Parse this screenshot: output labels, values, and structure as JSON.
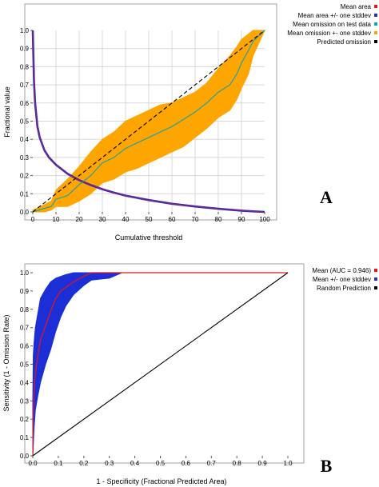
{
  "chart_data": [
    {
      "type": "line",
      "panel_label": "A",
      "xlabel": "Cumulative threshold",
      "ylabel": "Fractional value",
      "xlim": [
        0,
        100
      ],
      "ylim": [
        0,
        1
      ],
      "x_ticks": [
        "0",
        "10",
        "20",
        "30",
        "40",
        "50",
        "60",
        "70",
        "80",
        "90",
        "100"
      ],
      "y_ticks": [
        "0.0",
        "0.1",
        "0.2",
        "0.3",
        "0.4",
        "0.5",
        "0.6",
        "0.7",
        "0.8",
        "0.9",
        "1.0"
      ],
      "grid": true,
      "legend_position": "right",
      "series": [
        {
          "name": "Mean area",
          "color": "#e8141b",
          "x": [
            0,
            0.5,
            1,
            2,
            3,
            5,
            7,
            10,
            15,
            20,
            25,
            30,
            35,
            40,
            50,
            60,
            70,
            80,
            90,
            95,
            100
          ],
          "y": [
            1.0,
            0.72,
            0.6,
            0.47,
            0.41,
            0.34,
            0.3,
            0.26,
            0.21,
            0.175,
            0.148,
            0.125,
            0.106,
            0.09,
            0.065,
            0.045,
            0.03,
            0.017,
            0.007,
            0.003,
            0.0
          ]
        },
        {
          "name": "Mean area +/- one stddev",
          "color": "#1c2fd6",
          "x": [
            0,
            0.5,
            1,
            2,
            3,
            5,
            7,
            10,
            15,
            20,
            25,
            30,
            35,
            40,
            50,
            60,
            70,
            80,
            90,
            95,
            100
          ],
          "y": [
            1.0,
            0.72,
            0.6,
            0.47,
            0.41,
            0.34,
            0.3,
            0.26,
            0.21,
            0.175,
            0.148,
            0.125,
            0.106,
            0.09,
            0.065,
            0.045,
            0.03,
            0.017,
            0.007,
            0.003,
            0.0
          ]
        },
        {
          "name": "Mean omission on test data",
          "color": "#21a3a0",
          "x": [
            0,
            5,
            8,
            10,
            15,
            20,
            25,
            30,
            35,
            40,
            45,
            50,
            55,
            60,
            65,
            70,
            75,
            80,
            85,
            88,
            90,
            93,
            95,
            100
          ],
          "y": [
            0.0,
            0.02,
            0.03,
            0.07,
            0.09,
            0.15,
            0.2,
            0.27,
            0.3,
            0.35,
            0.38,
            0.41,
            0.44,
            0.47,
            0.51,
            0.55,
            0.6,
            0.66,
            0.7,
            0.76,
            0.82,
            0.89,
            0.94,
            1.0
          ]
        },
        {
          "name": "Mean omission +- one stddev",
          "color": "#ffa500",
          "x": [
            0,
            5,
            8,
            10,
            15,
            20,
            25,
            30,
            35,
            40,
            45,
            50,
            55,
            60,
            65,
            70,
            75,
            80,
            85,
            88,
            90,
            93,
            95,
            100
          ],
          "upper": [
            0.01,
            0.04,
            0.06,
            0.12,
            0.18,
            0.25,
            0.33,
            0.4,
            0.44,
            0.5,
            0.53,
            0.56,
            0.59,
            0.6,
            0.63,
            0.66,
            0.71,
            0.79,
            0.86,
            0.91,
            0.95,
            0.98,
            1.0,
            1.0
          ],
          "lower": [
            0.0,
            0.0,
            0.01,
            0.03,
            0.03,
            0.06,
            0.1,
            0.16,
            0.18,
            0.22,
            0.24,
            0.27,
            0.3,
            0.33,
            0.36,
            0.41,
            0.46,
            0.52,
            0.56,
            0.62,
            0.68,
            0.76,
            0.86,
            1.0
          ]
        },
        {
          "name": "Predicted omission",
          "color": "#000000",
          "x": [
            0,
            100
          ],
          "y": [
            0,
            1
          ]
        }
      ]
    },
    {
      "type": "line",
      "panel_label": "B",
      "xlabel": "1 - Specificity (Fractional Predicted Area)",
      "ylabel": "Sensitivity (1 - Omission Rate)",
      "xlim": [
        0,
        1
      ],
      "ylim": [
        0,
        1
      ],
      "x_ticks": [
        "0.0",
        "0.1",
        "0.2",
        "0.3",
        "0.4",
        "0.5",
        "0.6",
        "0.7",
        "0.8",
        "0.9",
        "1.0"
      ],
      "y_ticks": [
        "0.0",
        "0.1",
        "0.2",
        "0.3",
        "0.4",
        "0.5",
        "0.6",
        "0.7",
        "0.8",
        "0.9",
        "1.0"
      ],
      "grid": false,
      "legend_position": "right",
      "series": [
        {
          "name": "Mean (AUC = 0.946)",
          "color": "#e8141b",
          "x": [
            0,
            0.002,
            0.005,
            0.01,
            0.02,
            0.03,
            0.05,
            0.07,
            0.09,
            0.11,
            0.13,
            0.16,
            0.2,
            0.23,
            0.3,
            1.0
          ],
          "y": [
            0,
            0.22,
            0.35,
            0.45,
            0.55,
            0.63,
            0.71,
            0.79,
            0.86,
            0.9,
            0.92,
            0.95,
            0.98,
            1.0,
            1.0,
            1.0
          ]
        },
        {
          "name": "Mean +/- one stddev",
          "color": "#1c2fd6",
          "x": [
            0,
            0.002,
            0.005,
            0.01,
            0.02,
            0.03,
            0.05,
            0.07,
            0.09,
            0.11,
            0.13,
            0.16,
            0.2,
            0.23,
            0.3,
            0.35,
            1.0
          ],
          "upper": [
            0.3,
            0.55,
            0.62,
            0.7,
            0.78,
            0.86,
            0.91,
            0.95,
            0.97,
            0.98,
            0.99,
            1.0,
            1.0,
            1.0,
            1.0,
            1.0,
            1.0
          ],
          "lower": [
            0,
            0.05,
            0.15,
            0.25,
            0.33,
            0.4,
            0.5,
            0.58,
            0.68,
            0.76,
            0.82,
            0.88,
            0.93,
            0.96,
            0.97,
            1.0,
            1.0
          ]
        },
        {
          "name": "Random Prediction",
          "color": "#000000",
          "x": [
            0,
            1
          ],
          "y": [
            0,
            1
          ]
        }
      ]
    }
  ]
}
